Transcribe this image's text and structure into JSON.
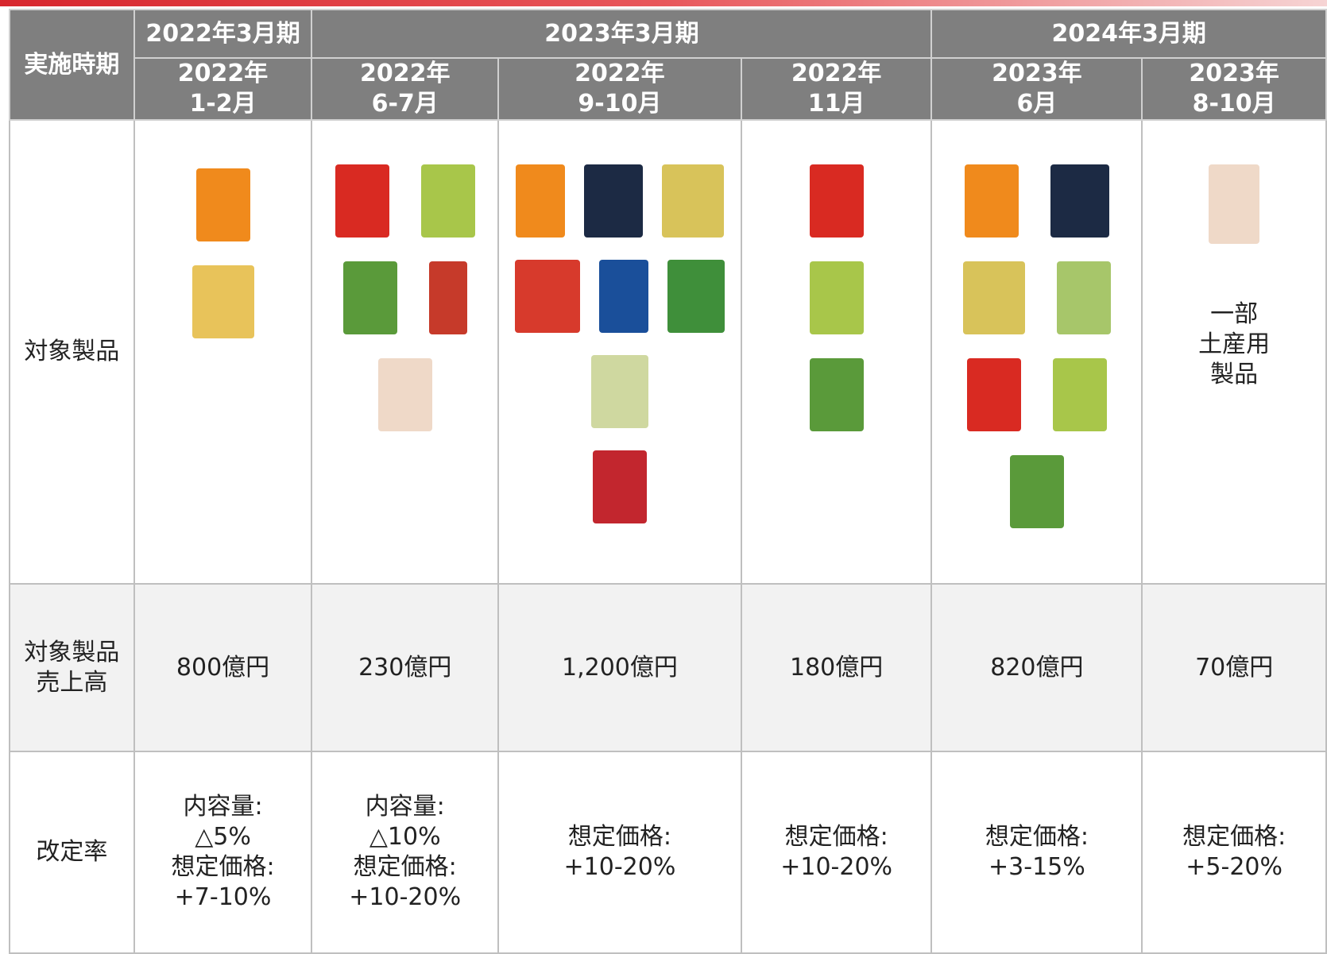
{
  "table": {
    "header_label": "実施時期",
    "fiscal_years": [
      "2022年3月期",
      "2023年3月期",
      "2024年3月期"
    ],
    "periods": [
      [
        "2022年",
        "1-2月"
      ],
      [
        "2022年",
        "6-7月"
      ],
      [
        "2022年",
        "9-10月"
      ],
      [
        "2022年",
        "11月"
      ],
      [
        "2023年",
        "6月"
      ],
      [
        "2023年",
        "8-10月"
      ]
    ],
    "row_labels": [
      [
        "対象製品"
      ],
      [
        "対象製品",
        "売上高"
      ],
      [
        "改定率"
      ]
    ],
    "products_note": [
      "一部",
      "土産用",
      "製品"
    ],
    "sales": [
      "800億円",
      "230億円",
      "1,200億円",
      "180億円",
      "820億円",
      "70億円"
    ],
    "rates": [
      [
        "内容量:",
        "△5%",
        "想定価格:",
        "+7-10%"
      ],
      [
        "内容量:",
        "△10%",
        "想定価格:",
        "+10-20%"
      ],
      [
        "想定価格:",
        "+10-20%"
      ],
      [
        "想定価格:",
        "+10-20%"
      ],
      [
        "想定価格:",
        "+3-15%"
      ],
      [
        "想定価格:",
        "+5-20%"
      ]
    ]
  }
}
